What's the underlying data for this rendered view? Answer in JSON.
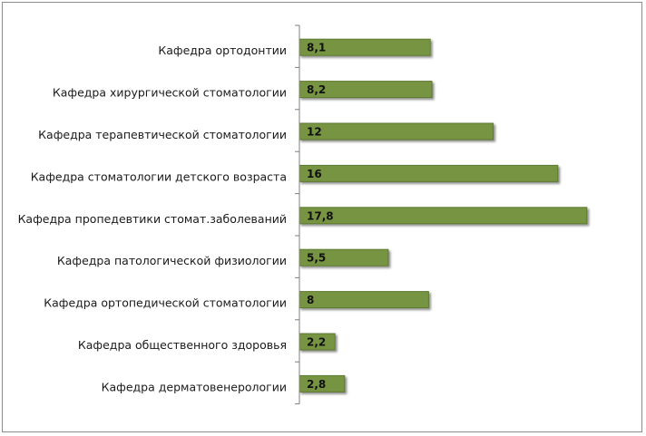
{
  "chart_data": {
    "type": "bar",
    "orientation": "horizontal",
    "categories": [
      "Кафедра ортодонтии",
      "Кафедра хирургической стоматологии",
      "Кафедра терапевтической стоматологии",
      "Кафедра стоматологии детского возраста",
      "Кафедра пропедевтики стомат.заболеваний",
      "Кафедра патологической физиологии",
      "Кафедра ортопедической стоматологии",
      "Кафедра общественного здоровья",
      "Кафедра дерматовенерологии"
    ],
    "values": [
      8.1,
      8.2,
      12,
      16,
      17.8,
      5.5,
      8,
      2.2,
      2.8
    ],
    "value_labels": [
      "8,1",
      "8,2",
      "12",
      "16",
      "17,8",
      "5,5",
      "8",
      "2,2",
      "2,8"
    ],
    "xlim": [
      0,
      18
    ],
    "grid": false,
    "legend": "none",
    "bar_color": "#779443",
    "bar_border_color": "#5d7a2f",
    "axis_color": "#7f7f7f"
  }
}
